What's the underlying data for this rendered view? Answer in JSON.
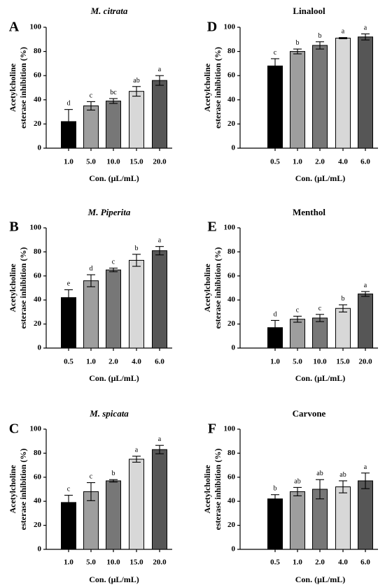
{
  "panel_colors": [
    "#000000",
    "#9e9e9e",
    "#777777",
    "#d8d8d8",
    "#565656"
  ],
  "chart_data": [
    {
      "panel": "A",
      "type": "bar",
      "title": "M. citrata",
      "title_italic": true,
      "ylabel_line1": "Acetylcholine",
      "ylabel_line2": "esterase inhibition (%)",
      "xlabel": "Con. (μL/mL)",
      "categories": [
        "1.0",
        "5.0",
        "10.0",
        "15.0",
        "20.0"
      ],
      "values": [
        22,
        35,
        39,
        47,
        56
      ],
      "errors": [
        10,
        3.5,
        2,
        4,
        4
      ],
      "letters": [
        "d",
        "c",
        "bc",
        "ab",
        "a"
      ],
      "ylim": [
        0,
        100
      ],
      "yticks": [
        "0",
        "20",
        "40",
        "60",
        "80",
        "100"
      ]
    },
    {
      "panel": "B",
      "type": "bar",
      "title": "M. Piperita",
      "title_italic": true,
      "ylabel_line1": "Acetylcholine",
      "ylabel_line2": "esterase inhibition (%)",
      "xlabel": "Con. (μL/mL)",
      "categories": [
        "0.5",
        "1.0",
        "2.0",
        "4.0",
        "6.0"
      ],
      "values": [
        42,
        56,
        65,
        73,
        81
      ],
      "errors": [
        6.5,
        5,
        1.5,
        5,
        3.5
      ],
      "letters": [
        "e",
        "d",
        "c",
        "b",
        "a"
      ],
      "ylim": [
        0,
        100
      ],
      "yticks": [
        "0",
        "20",
        "40",
        "60",
        "80",
        "100"
      ]
    },
    {
      "panel": "C",
      "type": "bar",
      "title": "M. spicata",
      "title_italic": true,
      "ylabel_line1": "Acetylcholine",
      "ylabel_line2": "esterase inhibition (%)",
      "xlabel": "Con. (μL/mL)",
      "categories": [
        "1.0",
        "5.0",
        "10.0",
        "15.0",
        "20.0"
      ],
      "values": [
        39,
        48,
        57,
        75,
        83
      ],
      "errors": [
        6,
        7.5,
        1,
        2.5,
        3.5
      ],
      "letters": [
        "c",
        "c",
        "b",
        "a",
        "a"
      ],
      "ylim": [
        0,
        100
      ],
      "yticks": [
        "0",
        "20",
        "40",
        "60",
        "80",
        "100"
      ]
    },
    {
      "panel": "D",
      "type": "bar",
      "title": "Linalool",
      "title_italic": false,
      "ylabel_line1": "Acetylcholine",
      "ylabel_line2": "esterase inhibition (%)",
      "xlabel": "Con. (μL/mL)",
      "categories": [
        "0.5",
        "1.0",
        "2.0",
        "4.0",
        "6.0"
      ],
      "values": [
        68,
        80,
        85,
        91,
        92
      ],
      "errors": [
        6,
        2,
        3,
        0.5,
        2.5
      ],
      "letters": [
        "c",
        "b",
        "b",
        "a",
        "a"
      ],
      "ylim": [
        0,
        100
      ],
      "yticks": [
        "0",
        "20",
        "40",
        "60",
        "80",
        "100"
      ]
    },
    {
      "panel": "E",
      "type": "bar",
      "title": "Menthol",
      "title_italic": false,
      "ylabel_line1": "Acetylcholine",
      "ylabel_line2": "esterase inhibition (%)",
      "xlabel": "Con. (μL/mL)",
      "categories": [
        "1.0",
        "5.0",
        "10.0",
        "15.0",
        "20.0"
      ],
      "values": [
        17,
        24,
        25,
        33,
        45
      ],
      "errors": [
        6,
        2.5,
        3,
        3,
        2
      ],
      "letters": [
        "d",
        "c",
        "c",
        "b",
        "a"
      ],
      "ylim": [
        0,
        100
      ],
      "yticks": [
        "0",
        "20",
        "40",
        "60",
        "80",
        "100"
      ]
    },
    {
      "panel": "F",
      "type": "bar",
      "title": "Carvone",
      "title_italic": false,
      "ylabel_line1": "Acetylcholine",
      "ylabel_line2": "esterase inhibition (%)",
      "xlabel": "Con. (μL/mL)",
      "categories": [
        "0.5",
        "1.0",
        "2.0",
        "4.0",
        "6.0"
      ],
      "values": [
        42,
        48,
        50,
        52,
        57
      ],
      "errors": [
        3.5,
        3.5,
        8,
        5,
        6.5
      ],
      "letters": [
        "b",
        "ab",
        "ab",
        "ab",
        "a"
      ],
      "ylim": [
        0,
        100
      ],
      "yticks": [
        "0",
        "20",
        "40",
        "60",
        "80",
        "100"
      ]
    }
  ]
}
